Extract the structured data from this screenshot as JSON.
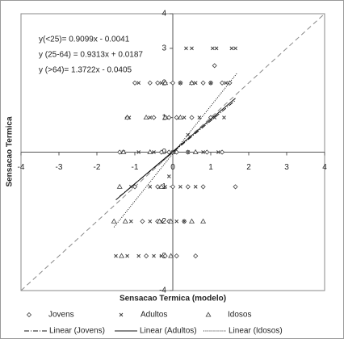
{
  "chart_data": {
    "type": "scatter",
    "x_label": "Sensacao Termica (modelo)",
    "y_label": "Sensacao Termica",
    "xlim": [
      -4,
      4
    ],
    "ylim": [
      -4,
      4
    ],
    "xticks": [
      -4,
      -3,
      -2,
      -1,
      0,
      1,
      2,
      3,
      4
    ],
    "yticks": [
      -4,
      -3,
      -2,
      -1,
      0,
      1,
      2,
      3,
      4
    ],
    "grid": false,
    "annotations": [
      "y(<25)= 0.9099x - 0.0041",
      "y (25-64) = 0.9313x + 0.0187",
      "y  (>64)= 1.3722x - 0.0405"
    ],
    "series": [
      {
        "name": "Jovens",
        "marker": "diamond",
        "color": "#404040",
        "x": [
          -1.0,
          -0.6,
          -0.4,
          -0.2,
          0,
          0.2,
          0.5,
          0.8,
          1.0,
          1.3,
          1.5,
          -1.2,
          -0.5,
          -0.1,
          0.1,
          0.5,
          1.0,
          -1.4,
          -0.3,
          -0.1,
          0.1,
          0.4,
          0.9,
          1.3,
          -1.0,
          -0.4,
          0,
          0.4,
          0.8,
          1.65,
          -0.8,
          -0.4,
          -0.1,
          0.3,
          -0.7,
          -0.2,
          0.1,
          0.6,
          1.1
        ],
        "y": [
          2,
          2,
          2,
          2,
          2,
          2,
          2,
          2,
          2,
          2,
          2,
          1,
          1,
          1,
          1,
          1,
          1,
          0,
          0,
          0,
          0,
          0,
          0,
          0,
          -1,
          -1,
          -1,
          -1,
          -1,
          -1,
          -2,
          -2,
          -2,
          -2,
          -3,
          -3,
          -3,
          -3,
          2.5
        ]
      },
      {
        "name": "Adultos",
        "marker": "x",
        "color": "#404040",
        "x": [
          0.35,
          0.5,
          1.05,
          1.15,
          1.55,
          1.65,
          -0.9,
          -0.3,
          0.2,
          0.6,
          1.0,
          1.4,
          -1.15,
          -0.6,
          -0.2,
          0.3,
          0.7,
          1.1,
          1.35,
          0.4,
          -1.3,
          -0.9,
          -0.5,
          0,
          0.4,
          0.8,
          1.2,
          -0.1,
          -1.1,
          -0.6,
          -0.2,
          0.2,
          0.6,
          -1.1,
          -0.6,
          -0.3,
          0.1,
          0.3,
          -1.5,
          -1.2,
          -0.9,
          -0.5,
          -0.3
        ],
        "y": [
          3,
          3,
          3,
          3,
          3,
          3,
          2,
          2,
          2,
          2,
          2,
          2,
          1,
          1,
          1,
          1,
          1,
          1,
          1,
          0.5,
          0,
          0,
          0,
          0,
          0,
          0,
          0,
          -0.7,
          -1,
          -1,
          -1,
          -1,
          -1,
          -2,
          -2,
          -2,
          -2,
          -2,
          -3,
          -3,
          -3,
          -3,
          -3
        ]
      },
      {
        "name": "Idosos",
        "marker": "triangle",
        "color": "#404040",
        "x": [
          -0.2,
          0.5,
          -1.2,
          -0.7,
          -0.2,
          0.2,
          -1.3,
          -0.6,
          0,
          0.6,
          -1.4,
          -0.3,
          -1.55,
          -1.25,
          -0.35,
          -0.05,
          0.5,
          0.8,
          -1.35,
          -0.05
        ],
        "y": [
          2,
          2,
          1,
          1,
          1,
          1,
          0,
          0,
          0,
          0,
          -1,
          -1,
          -2,
          -2,
          -2,
          -2,
          -2,
          -2,
          -3,
          -3
        ]
      }
    ],
    "trendlines": [
      {
        "name": "Linear (Jovens)",
        "slope": 0.9099,
        "intercept": -0.0041,
        "x_range": [
          -1.4,
          1.65
        ],
        "dash": "6 2 1 2"
      },
      {
        "name": "Linear (Adultos)",
        "slope": 0.9313,
        "intercept": 0.0187,
        "x_range": [
          -1.5,
          1.65
        ],
        "dash": "none"
      },
      {
        "name": "Linear (Idosos)",
        "slope": 1.3722,
        "intercept": -0.0405,
        "x_range": [
          -1.55,
          1.7
        ],
        "dash": "1 1.5"
      }
    ]
  }
}
